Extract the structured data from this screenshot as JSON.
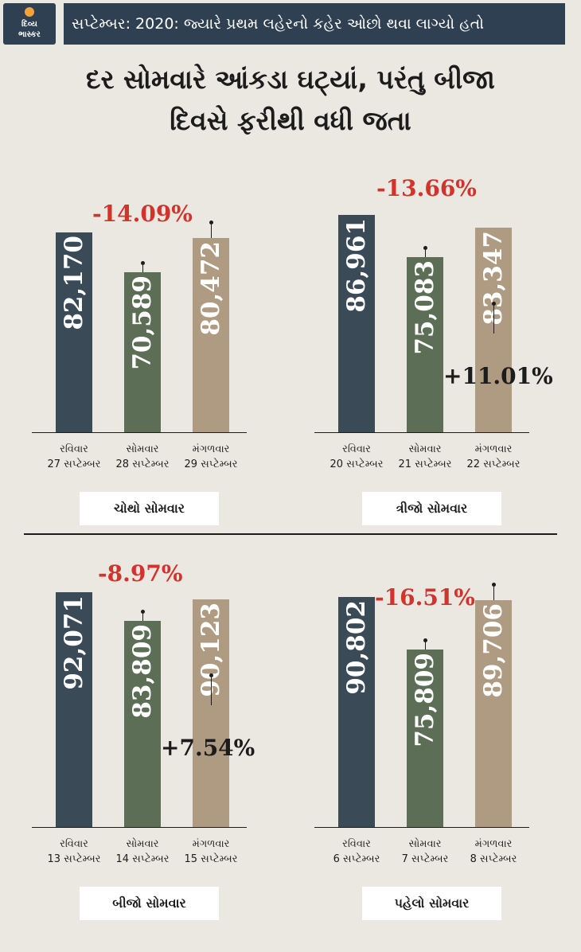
{
  "header": {
    "logo_text": "દિવ્ય\nભાસ્કર",
    "banner": "સપ્ટેમ્બર: 2020: જ્યારે પ્રથમ લહેરનો કહેર ઓછો થવા લાગ્યો હતો",
    "title": "દર સોમવારે આંકડા ઘટ્યાં, પરંતુ બીજા\nદિવસે ફરીથી વધી જતા"
  },
  "colors": {
    "sunday": "#3a4a57",
    "monday": "#5c6e56",
    "tuesday": "#ae9b82",
    "negative": "#d0342c"
  },
  "chart_data": [
    {
      "type": "bar",
      "week_label": "ચોથો સોમવાર",
      "categories": [
        "રવિવાર\n27 સપ્ટેમ્બર",
        "સોમવાર\n28 સપ્ટેમ્બર",
        "મંગળવાર\n29 સપ્ટેમ્બર"
      ],
      "values": [
        82170,
        70589,
        80472
      ],
      "value_labels": [
        "82,170",
        "70,589",
        "80,472"
      ],
      "drop_label": "-14.09%",
      "rise_label": ""
    },
    {
      "type": "bar",
      "week_label": "ત્રીજો સોમવાર",
      "categories": [
        "રવિવાર\n20 સપ્ટેમ્બર",
        "સોમવાર\n21 સપ્ટેમ્બર",
        "મંગળવાર\n22 સપ્ટેમ્બર"
      ],
      "values": [
        86961,
        75083,
        83347
      ],
      "value_labels": [
        "86,961",
        "75,083",
        "83,347"
      ],
      "drop_label": "-13.66%",
      "rise_label": "+11.01%"
    },
    {
      "type": "bar",
      "week_label": "બીજો સોમવાર",
      "categories": [
        "રવિવાર\n13 સપ્ટેમ્બર",
        "સોમવાર\n14 સપ્ટેમ્બર",
        "મંગળવાર\n15 સપ્ટેમ્બર"
      ],
      "values": [
        92071,
        83809,
        90123
      ],
      "value_labels": [
        "92,071",
        "83,809",
        "90,123"
      ],
      "drop_label": "-8.97%",
      "rise_label": "+7.54%"
    },
    {
      "type": "bar",
      "week_label": "પહેલો સોમવાર",
      "categories": [
        "રવિવાર\n6 સપ્ટેમ્બર",
        "સોમવાર\n7 સપ્ટેમ્બર",
        "મંગળવાર\n8 સપ્ટેમ્બર"
      ],
      "values": [
        90802,
        75809,
        89706
      ],
      "value_labels": [
        "90,802",
        "75,809",
        "89,706"
      ],
      "drop_label": "-16.51%",
      "rise_label": ""
    }
  ]
}
